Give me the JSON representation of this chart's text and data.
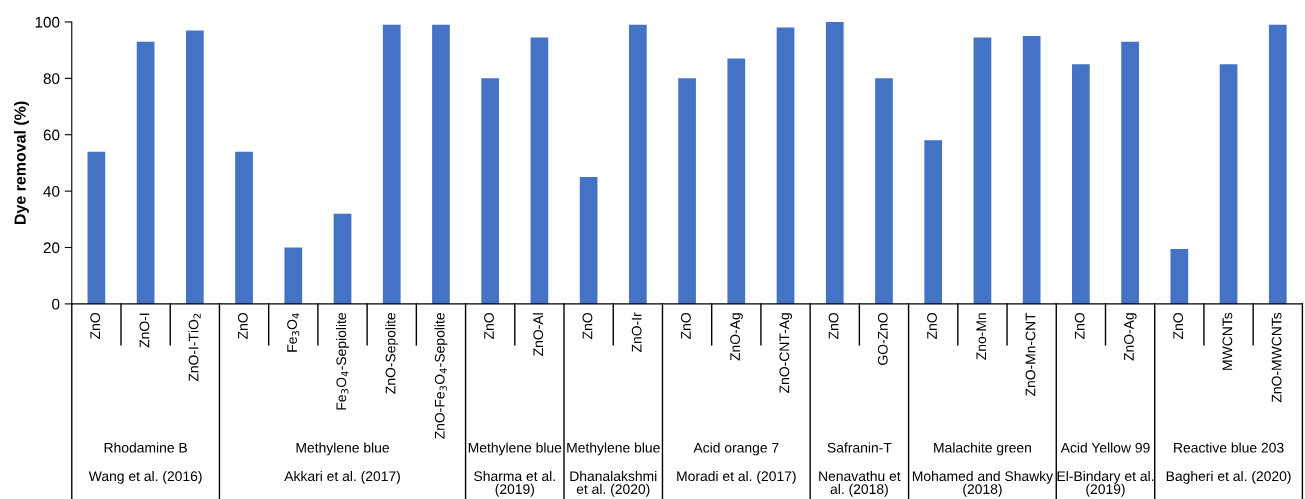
{
  "chart_data": [
    {
      "type": "bar",
      "ylabel": "Dye removal (%)",
      "color": "#4472c4",
      "ylim": [
        0,
        100
      ],
      "yticks": [
        0,
        20,
        40,
        60,
        80,
        100
      ],
      "xlabel": "Rhodamine B",
      "annotations": [
        "Wang et al. (2016)"
      ],
      "categories": [
        "ZnO",
        "ZnO-I",
        "ZnO-I-TiO$_{2}$"
      ],
      "values": [
        54,
        93,
        97
      ]
    },
    {
      "type": "bar",
      "color": "#4472c4",
      "ylim": [
        0,
        100
      ],
      "tick_labels": "x",
      "xlabel": "Methylene blue",
      "annotations": [
        "Akkari et al. (2017)"
      ],
      "categories": [
        "ZnO",
        "Fe$_{3}$O$_{4}$",
        "Fe$_{3}$O$_{4}$-Sepiolite",
        "ZnO-Sepolite",
        "ZnO-Fe$_{3}$O$_{4}$-Sepolite"
      ],
      "values": [
        54,
        20,
        32,
        99,
        99
      ]
    },
    {
      "type": "bar",
      "color": "#4472c4",
      "ylim": [
        0,
        100
      ],
      "tick_labels": "x",
      "xlabel": "Methylene blue",
      "annotations": [
        "Sharma et al.\n(2019)"
      ],
      "categories": [
        "ZnO",
        "ZnO-Al"
      ],
      "values": [
        80,
        94.5
      ]
    },
    {
      "type": "bar",
      "color": "#4472c4",
      "ylim": [
        0,
        100
      ],
      "tick_labels": "x",
      "xlabel": "Methylene blue",
      "annotations": [
        "Dhanalakshmi\net al. (2020)"
      ],
      "categories": [
        "ZnO",
        "ZnO-Ir"
      ],
      "values": [
        45,
        99
      ]
    },
    {
      "type": "bar",
      "color": "#4472c4",
      "ylim": [
        0,
        100
      ],
      "tick_labels": "x",
      "xlabel": "Acid orange 7",
      "annotations": [
        "Moradi et al. (2017)"
      ],
      "categories": [
        "ZnO",
        "ZnO-Ag",
        "ZnO-CNT-Ag"
      ],
      "values": [
        80,
        87,
        98
      ]
    },
    {
      "type": "bar",
      "color": "#4472c4",
      "ylim": [
        0,
        100
      ],
      "tick_labels": "x",
      "xlabel": "Safranin-T",
      "annotations": [
        "Nenavathu et\nal. (2018)"
      ],
      "categories": [
        "ZnO",
        "GO-ZnO"
      ],
      "values": [
        100,
        80
      ]
    },
    {
      "type": "bar",
      "color": "#4472c4",
      "ylim": [
        0,
        100
      ],
      "tick_labels": "x",
      "xlabel": "Malachite green",
      "annotations": [
        "Mohamed and Shawky\n(2018)"
      ],
      "categories": [
        "ZnO",
        "Zno-Mn",
        "ZnO-Mn-CNT"
      ],
      "values": [
        58,
        94.5,
        95
      ]
    },
    {
      "type": "bar",
      "color": "#4472c4",
      "ylim": [
        0,
        100
      ],
      "tick_labels": "x",
      "xlabel": "Acid Yellow 99",
      "annotations": [
        "El-Bindary et al.\n(2019)"
      ],
      "categories": [
        "ZnO",
        "ZnO-Ag"
      ],
      "values": [
        85,
        93
      ]
    },
    {
      "type": "bar",
      "color": "#4472c4",
      "ylim": [
        0,
        100
      ],
      "tick_labels": "x",
      "xlabel": "Reactive blue 203",
      "annotations": [
        "Bagheri et al. (2020)"
      ],
      "categories": [
        "ZnO",
        "MWCNTs",
        "ZnO-MWCNTs"
      ],
      "values": [
        19.5,
        85,
        99
      ]
    }
  ]
}
